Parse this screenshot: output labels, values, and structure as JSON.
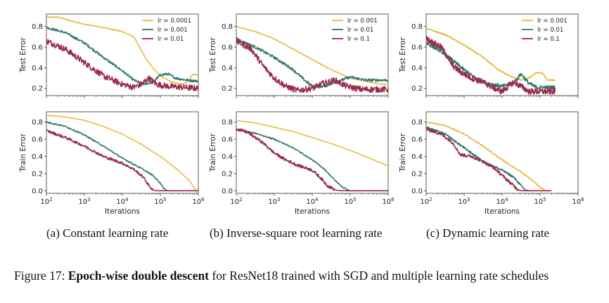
{
  "figure_caption": {
    "label": "Figure 17:",
    "bold": "Epoch-wise double descent",
    "rest": " for ResNet18 trained with SGD and multiple learning rate schedules"
  },
  "subcaptions": [
    "(a) Constant learning rate",
    "(b) Inverse-square root learning rate",
    "(c) Dynamic learning rate"
  ],
  "colors": {
    "yellow": "#e9b93e",
    "teal": "#33776f",
    "red": "#9a2b4b",
    "axis": "#333333"
  },
  "chart_data": [
    {
      "type": "line",
      "panel": "a",
      "row": "test",
      "ylabel": "Test Error",
      "xlabel": "",
      "xscale": "log",
      "xlim": [
        100,
        1000000
      ],
      "ylim": [
        0.13,
        0.92
      ],
      "yticks": [
        "0.2",
        "0.4",
        "0.6",
        "0.8"
      ],
      "legend": "top-right",
      "series": [
        {
          "name": "lr = 0.0001",
          "color": "yellow",
          "noise": 0.004,
          "points": [
            [
              2,
              0.89
            ],
            [
              2.3,
              0.89
            ],
            [
              2.7,
              0.85
            ],
            [
              3,
              0.82
            ],
            [
              3.5,
              0.79
            ],
            [
              4,
              0.75
            ],
            [
              4.3,
              0.7
            ],
            [
              4.6,
              0.5
            ],
            [
              4.8,
              0.4
            ],
            [
              5,
              0.32
            ],
            [
              5.2,
              0.28
            ],
            [
              5.4,
              0.25
            ],
            [
              5.6,
              0.24
            ],
            [
              5.75,
              0.28
            ],
            [
              5.85,
              0.34
            ],
            [
              6,
              0.33
            ]
          ]
        },
        {
          "name": "lr = 0.001",
          "color": "teal",
          "noise": 0.012,
          "points": [
            [
              2,
              0.79
            ],
            [
              2.5,
              0.74
            ],
            [
              3,
              0.64
            ],
            [
              3.5,
              0.5
            ],
            [
              4,
              0.37
            ],
            [
              4.3,
              0.28
            ],
            [
              4.55,
              0.24
            ],
            [
              4.8,
              0.26
            ],
            [
              5,
              0.33
            ],
            [
              5.2,
              0.34
            ],
            [
              5.4,
              0.3
            ],
            [
              5.7,
              0.28
            ],
            [
              6,
              0.27
            ]
          ]
        },
        {
          "name": "lr = 0.01",
          "color": "red",
          "noise": 0.03,
          "points": [
            [
              2,
              0.66
            ],
            [
              2.5,
              0.58
            ],
            [
              3,
              0.45
            ],
            [
              3.5,
              0.32
            ],
            [
              4,
              0.24
            ],
            [
              4.3,
              0.21
            ],
            [
              4.5,
              0.24
            ],
            [
              4.7,
              0.3
            ],
            [
              4.9,
              0.24
            ],
            [
              5.2,
              0.22
            ],
            [
              5.6,
              0.21
            ],
            [
              6,
              0.2
            ]
          ]
        }
      ]
    },
    {
      "type": "line",
      "panel": "b",
      "row": "test",
      "ylabel": "Test Error",
      "xlabel": "",
      "xscale": "log",
      "xlim": [
        100,
        1000000
      ],
      "ylim": [
        0.13,
        0.92
      ],
      "yticks": [
        "0.2",
        "0.4",
        "0.6",
        "0.8"
      ],
      "legend": "top-right",
      "series": [
        {
          "name": "lr = 0.001",
          "color": "yellow",
          "noise": 0.003,
          "points": [
            [
              2,
              0.8
            ],
            [
              2.5,
              0.75
            ],
            [
              3,
              0.68
            ],
            [
              3.5,
              0.58
            ],
            [
              4,
              0.48
            ],
            [
              4.5,
              0.38
            ],
            [
              5,
              0.3
            ],
            [
              5.4,
              0.27
            ],
            [
              5.8,
              0.24
            ],
            [
              6,
              0.24
            ]
          ]
        },
        {
          "name": "lr = 0.01",
          "color": "teal",
          "noise": 0.014,
          "points": [
            [
              2,
              0.68
            ],
            [
              2.5,
              0.6
            ],
            [
              3,
              0.5
            ],
            [
              3.5,
              0.38
            ],
            [
              3.8,
              0.28
            ],
            [
              4,
              0.22
            ],
            [
              4.3,
              0.22
            ],
            [
              4.7,
              0.27
            ],
            [
              5,
              0.31
            ],
            [
              5.4,
              0.28
            ],
            [
              6,
              0.28
            ]
          ]
        },
        {
          "name": "lr = 0.1",
          "color": "red",
          "noise": 0.03,
          "points": [
            [
              2,
              0.66
            ],
            [
              2.4,
              0.58
            ],
            [
              2.7,
              0.42
            ],
            [
              3,
              0.3
            ],
            [
              3.3,
              0.22
            ],
            [
              3.6,
              0.18
            ],
            [
              4,
              0.2
            ],
            [
              4.3,
              0.25
            ],
            [
              4.6,
              0.28
            ],
            [
              4.9,
              0.22
            ],
            [
              5.3,
              0.19
            ],
            [
              6,
              0.19
            ]
          ]
        }
      ]
    },
    {
      "type": "line",
      "panel": "c",
      "row": "test",
      "ylabel": "Test Error",
      "xlabel": "",
      "xscale": "log",
      "xlim": [
        100,
        1000000
      ],
      "ylim": [
        0.13,
        0.92
      ],
      "yticks": [
        "0.2",
        "0.4",
        "0.6",
        "0.8"
      ],
      "legend": "top-right",
      "series": [
        {
          "name": "lr = 0.001",
          "color": "yellow",
          "noise": 0.006,
          "points": [
            [
              2,
              0.78
            ],
            [
              2.5,
              0.72
            ],
            [
              3,
              0.62
            ],
            [
              3.5,
              0.5
            ],
            [
              3.9,
              0.38
            ],
            [
              4.2,
              0.32
            ],
            [
              4.5,
              0.28
            ],
            [
              4.7,
              0.3
            ],
            [
              4.9,
              0.35
            ],
            [
              5.05,
              0.35
            ],
            [
              5.2,
              0.28
            ],
            [
              5.4,
              0.28
            ]
          ]
        },
        {
          "name": "lr = 0.01",
          "color": "teal",
          "noise": 0.018,
          "points": [
            [
              2,
              0.64
            ],
            [
              2.4,
              0.56
            ],
            [
              2.8,
              0.44
            ],
            [
              3,
              0.38
            ],
            [
              3.3,
              0.3
            ],
            [
              3.6,
              0.25
            ],
            [
              4,
              0.22
            ],
            [
              4.3,
              0.25
            ],
            [
              4.5,
              0.34
            ],
            [
              4.7,
              0.25
            ],
            [
              4.9,
              0.21
            ],
            [
              5.4,
              0.21
            ]
          ]
        },
        {
          "name": "lr = 0.1",
          "color": "red",
          "noise": 0.03,
          "points": [
            [
              2,
              0.68
            ],
            [
              2.4,
              0.6
            ],
            [
              2.7,
              0.42
            ],
            [
              2.9,
              0.36
            ],
            [
              3.2,
              0.3
            ],
            [
              3.5,
              0.26
            ],
            [
              3.8,
              0.2
            ],
            [
              4,
              0.17
            ],
            [
              4.3,
              0.26
            ],
            [
              4.5,
              0.22
            ],
            [
              4.7,
              0.17
            ],
            [
              5.4,
              0.17
            ]
          ]
        }
      ]
    },
    {
      "type": "line",
      "panel": "a",
      "row": "train",
      "ylabel": "Train Error",
      "xlabel": "Iterations",
      "xscale": "log",
      "xlim": [
        100,
        1000000
      ],
      "ylim": [
        -0.03,
        0.92
      ],
      "yticks": [
        "0.0",
        "0.2",
        "0.4",
        "0.6",
        "0.8"
      ],
      "xticks": [
        "10^2",
        "10^3",
        "10^4",
        "10^5",
        "10^6"
      ],
      "series": [
        {
          "name": "lr = 0.0001",
          "color": "yellow",
          "noise": 0.002,
          "points": [
            [
              2,
              0.88
            ],
            [
              2.5,
              0.86
            ],
            [
              3,
              0.82
            ],
            [
              3.5,
              0.75
            ],
            [
              4,
              0.66
            ],
            [
              4.5,
              0.54
            ],
            [
              5,
              0.4
            ],
            [
              5.5,
              0.23
            ],
            [
              5.8,
              0.1
            ],
            [
              5.92,
              0.01
            ],
            [
              6,
              0.0
            ]
          ]
        },
        {
          "name": "lr = 0.001",
          "color": "teal",
          "noise": 0.008,
          "points": [
            [
              2,
              0.8
            ],
            [
              2.5,
              0.75
            ],
            [
              3,
              0.65
            ],
            [
              3.5,
              0.52
            ],
            [
              4,
              0.38
            ],
            [
              4.5,
              0.26
            ],
            [
              4.8,
              0.18
            ],
            [
              5,
              0.09
            ],
            [
              5.1,
              0.02
            ],
            [
              5.2,
              0.0
            ],
            [
              6,
              0.0
            ]
          ]
        },
        {
          "name": "lr = 0.01",
          "color": "red",
          "noise": 0.016,
          "points": [
            [
              2,
              0.7
            ],
            [
              2.5,
              0.62
            ],
            [
              3,
              0.52
            ],
            [
              3.5,
              0.4
            ],
            [
              4,
              0.32
            ],
            [
              4.3,
              0.25
            ],
            [
              4.55,
              0.16
            ],
            [
              4.7,
              0.06
            ],
            [
              4.8,
              0.01
            ],
            [
              4.9,
              0.0
            ],
            [
              6,
              0.0
            ]
          ]
        }
      ]
    },
    {
      "type": "line",
      "panel": "b",
      "row": "train",
      "ylabel": "Train Error",
      "xlabel": "Iterations",
      "xscale": "log",
      "xlim": [
        100,
        1000000
      ],
      "ylim": [
        -0.03,
        0.92
      ],
      "yticks": [
        "0.0",
        "0.2",
        "0.4",
        "0.6",
        "0.8"
      ],
      "xticks": [
        "10^2",
        "10^3",
        "10^4",
        "10^5",
        "10^6"
      ],
      "series": [
        {
          "name": "lr = 0.001",
          "color": "yellow",
          "noise": 0.002,
          "points": [
            [
              2,
              0.82
            ],
            [
              2.5,
              0.79
            ],
            [
              3,
              0.74
            ],
            [
              3.5,
              0.69
            ],
            [
              4,
              0.62
            ],
            [
              4.5,
              0.55
            ],
            [
              5,
              0.47
            ],
            [
              5.5,
              0.38
            ],
            [
              6,
              0.29
            ]
          ]
        },
        {
          "name": "lr = 0.01",
          "color": "teal",
          "noise": 0.007,
          "points": [
            [
              2,
              0.72
            ],
            [
              2.5,
              0.67
            ],
            [
              3,
              0.6
            ],
            [
              3.5,
              0.5
            ],
            [
              4,
              0.36
            ],
            [
              4.3,
              0.26
            ],
            [
              4.6,
              0.12
            ],
            [
              4.8,
              0.04
            ],
            [
              5,
              0.0
            ],
            [
              6,
              0.0
            ]
          ]
        },
        {
          "name": "lr = 0.1",
          "color": "red",
          "noise": 0.018,
          "points": [
            [
              2,
              0.72
            ],
            [
              2.3,
              0.68
            ],
            [
              2.7,
              0.56
            ],
            [
              3,
              0.44
            ],
            [
              3.3,
              0.36
            ],
            [
              3.6,
              0.3
            ],
            [
              4,
              0.24
            ],
            [
              4.2,
              0.16
            ],
            [
              4.4,
              0.06
            ],
            [
              4.6,
              0.01
            ],
            [
              4.75,
              0.0
            ],
            [
              6,
              0.0
            ]
          ]
        }
      ]
    },
    {
      "type": "line",
      "panel": "c",
      "row": "train",
      "ylabel": "Train Error",
      "xlabel": "Iterations",
      "xscale": "log",
      "xlim": [
        100,
        1000000
      ],
      "ylim": [
        -0.03,
        0.92
      ],
      "yticks": [
        "0.0",
        "0.2",
        "0.4",
        "0.6",
        "0.8"
      ],
      "xticks": [
        "10^2",
        "10^3",
        "10^4",
        "10^5",
        "10^6"
      ],
      "series": [
        {
          "name": "lr = 0.001",
          "color": "yellow",
          "noise": 0.006,
          "points": [
            [
              2,
              0.8
            ],
            [
              2.5,
              0.76
            ],
            [
              3,
              0.66
            ],
            [
              3.5,
              0.52
            ],
            [
              4,
              0.36
            ],
            [
              4.5,
              0.22
            ],
            [
              4.8,
              0.12
            ],
            [
              5,
              0.04
            ],
            [
              5.15,
              0.0
            ],
            [
              5.3,
              0.0
            ]
          ]
        },
        {
          "name": "lr = 0.01",
          "color": "teal",
          "noise": 0.012,
          "points": [
            [
              2,
              0.74
            ],
            [
              2.5,
              0.66
            ],
            [
              3,
              0.5
            ],
            [
              3.5,
              0.34
            ],
            [
              4,
              0.24
            ],
            [
              4.3,
              0.16
            ],
            [
              4.5,
              0.06
            ],
            [
              4.6,
              0.01
            ],
            [
              4.75,
              0.0
            ],
            [
              5.3,
              0.0
            ]
          ]
        },
        {
          "name": "lr = 0.1",
          "color": "red",
          "noise": 0.018,
          "points": [
            [
              2,
              0.72
            ],
            [
              2.4,
              0.66
            ],
            [
              2.7,
              0.56
            ],
            [
              2.9,
              0.42
            ],
            [
              3.2,
              0.4
            ],
            [
              3.5,
              0.34
            ],
            [
              3.8,
              0.26
            ],
            [
              4,
              0.18
            ],
            [
              4.2,
              0.1
            ],
            [
              4.4,
              0.02
            ],
            [
              4.5,
              0.0
            ],
            [
              5.3,
              0.0
            ]
          ]
        }
      ]
    }
  ]
}
